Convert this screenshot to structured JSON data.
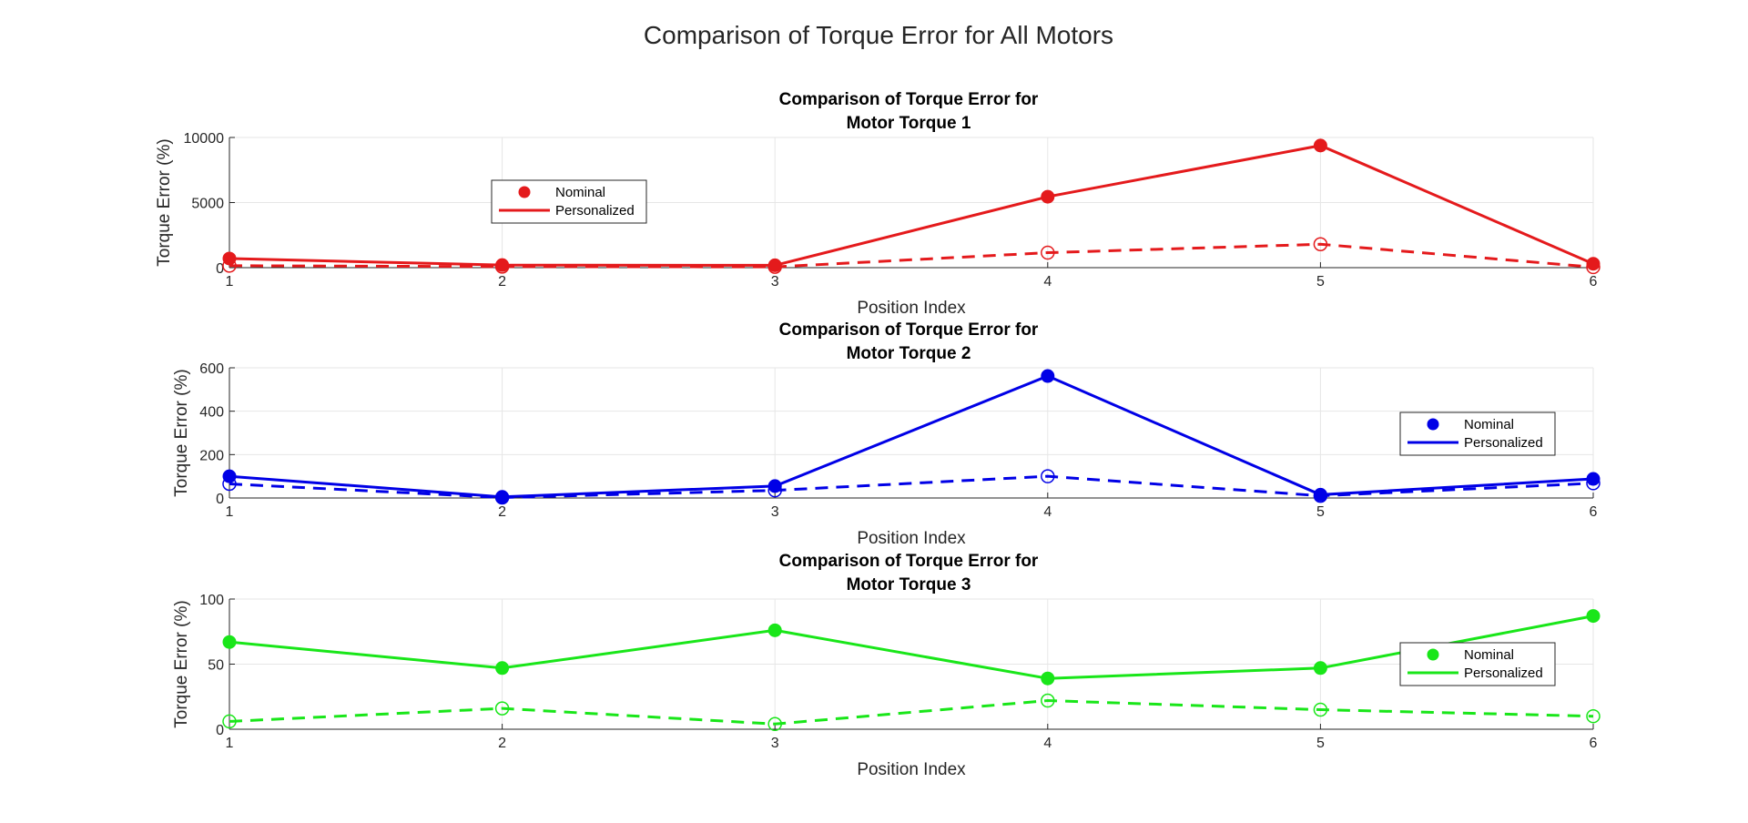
{
  "figure": {
    "title": "Comparison of Torque Error for All Motors"
  },
  "chart_data": [
    {
      "type": "line",
      "title_lines": [
        "Comparison of Torque Error for",
        "Motor Torque 1"
      ],
      "xlabel": "Position Index",
      "ylabel": "Torque Error (%)",
      "x": [
        1,
        2,
        3,
        4,
        5,
        6
      ],
      "xlim": [
        1,
        6
      ],
      "ylim": [
        0,
        10000
      ],
      "xticks": [
        "1",
        "2",
        "3",
        "4",
        "5",
        "6"
      ],
      "yticks": [
        0,
        5000,
        10000
      ],
      "ytick_labels": [
        "0",
        "5000",
        "10000"
      ],
      "grid": true,
      "color": "#e41a1c",
      "legend_position": "upper-left-center",
      "legend_entries": [
        "Nominal",
        "Personalized"
      ],
      "series": [
        {
          "name": "Personalized",
          "style": "solid",
          "marker": "filled-circle",
          "values": [
            700,
            200,
            180,
            5450,
            9380,
            300
          ]
        },
        {
          "name": "Nominal",
          "style": "dashed",
          "marker": "open-circle",
          "values": [
            150,
            80,
            60,
            1150,
            1800,
            40
          ]
        }
      ]
    },
    {
      "type": "line",
      "title_lines": [
        "Comparison of Torque Error for",
        "Motor Torque 2"
      ],
      "xlabel": "Position Index",
      "ylabel": "Torque Error (%)",
      "x": [
        1,
        2,
        3,
        4,
        5,
        6
      ],
      "xlim": [
        1,
        6
      ],
      "ylim": [
        0,
        600
      ],
      "xticks": [
        "1",
        "2",
        "3",
        "4",
        "5",
        "6"
      ],
      "yticks": [
        0,
        200,
        400,
        600
      ],
      "ytick_labels": [
        "0",
        "200",
        "400",
        "600"
      ],
      "grid": true,
      "color": "#0000e6",
      "legend_position": "right",
      "legend_entries": [
        "Nominal",
        "Personalized"
      ],
      "series": [
        {
          "name": "Personalized",
          "style": "solid",
          "marker": "filled-circle",
          "values": [
            100,
            5,
            55,
            562,
            15,
            88
          ]
        },
        {
          "name": "Nominal",
          "style": "dashed",
          "marker": "open-circle",
          "values": [
            65,
            2,
            35,
            100,
            10,
            68
          ]
        }
      ]
    },
    {
      "type": "line",
      "title_lines": [
        "Comparison of Torque Error for",
        "Motor Torque 3"
      ],
      "xlabel": "Position Index",
      "ylabel": "Torque Error (%)",
      "x": [
        1,
        2,
        3,
        4,
        5,
        6
      ],
      "xlim": [
        1,
        6
      ],
      "ylim": [
        0,
        100
      ],
      "xticks": [
        "1",
        "2",
        "3",
        "4",
        "5",
        "6"
      ],
      "yticks": [
        0,
        50,
        100
      ],
      "ytick_labels": [
        "0",
        "50",
        "100"
      ],
      "grid": true,
      "color": "#19e619",
      "legend_position": "right",
      "legend_entries": [
        "Nominal",
        "Personalized"
      ],
      "series": [
        {
          "name": "Personalized",
          "style": "solid",
          "marker": "filled-circle",
          "values": [
            67,
            47,
            76,
            39,
            47,
            87
          ]
        },
        {
          "name": "Nominal",
          "style": "dashed",
          "marker": "open-circle",
          "values": [
            6,
            16,
            4,
            22,
            15,
            10
          ]
        }
      ]
    }
  ]
}
